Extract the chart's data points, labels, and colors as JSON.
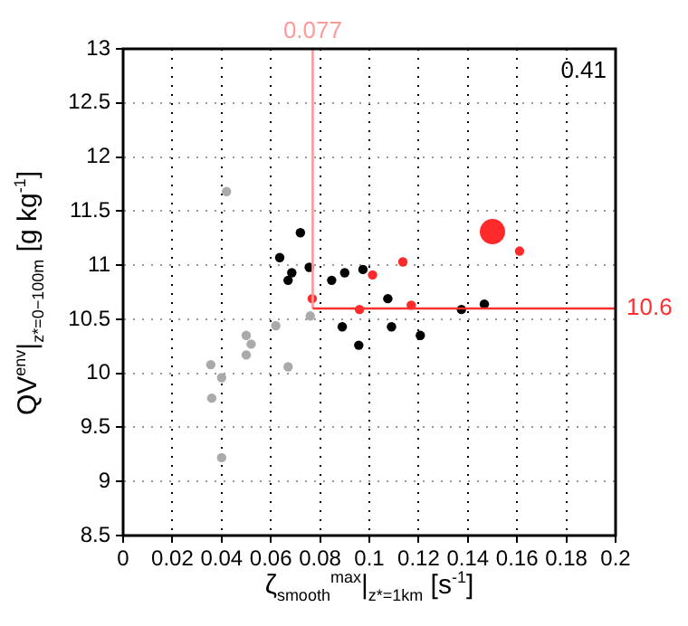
{
  "chart_data": {
    "type": "scatter",
    "xlabel": "ζ$_{smooth}$$^{max}$|$_{z*=1km}$  [s$^{-1}$]",
    "ylabel": "QV$^{env}$|$_{z*=0−100m}$  [g  kg$^{-1}$]",
    "annotations": [
      "0.41"
    ],
    "series": [
      {
        "color": "#aaaaaa",
        "x": [
          0.042,
          0.0356,
          0.036,
          0.04,
          0.04,
          0.05,
          0.052,
          0.05,
          0.062,
          0.067,
          0.076
        ],
        "values": [
          11.68,
          10.08,
          9.77,
          9.96,
          9.22,
          10.35,
          10.27,
          10.17,
          10.44,
          10.06,
          10.53
        ]
      },
      {
        "color": "#000000",
        "x": [
          0.0636,
          0.072,
          0.067,
          0.0685,
          0.0756,
          0.0847,
          0.09,
          0.0974,
          0.089,
          0.0957,
          0.1075,
          0.109,
          0.1207,
          0.1374,
          0.1467
        ],
        "values": [
          11.07,
          11.3,
          10.86,
          10.93,
          10.98,
          10.86,
          10.93,
          10.96,
          10.43,
          10.26,
          10.69,
          10.43,
          10.35,
          10.59,
          10.64
        ]
      },
      {
        "color": "#ff2a2a",
        "x": [
          0.0768,
          0.096,
          0.1013,
          0.1136,
          0.117,
          0.161
        ],
        "values": [
          10.69,
          10.59,
          10.91,
          11.03,
          10.63,
          11.13
        ]
      },
      {
        "type": "bubble",
        "color": "#ff2a2a",
        "x": [
          0.15
        ],
        "values": [
          11.31
        ],
        "sizes": [
          1
        ]
      }
    ],
    "xlim": [
      0,
      0.2
    ],
    "xticks": [
      0,
      0.02,
      0.04,
      0.06,
      0.08,
      0.1,
      0.12,
      0.14,
      0.16,
      0.18,
      0.2
    ],
    "ylim": [
      8.5,
      13
    ],
    "yticks": [
      8.5,
      9,
      9.5,
      10,
      10.5,
      11,
      11.5,
      12,
      12.5,
      13
    ],
    "ref_lines": [
      {
        "axis": "x",
        "value": 0.077,
        "label": "0.077",
        "color": "#ff9a9a"
      },
      {
        "axis": "y",
        "value": 10.6,
        "label": "10.6",
        "color": "#ff3030"
      }
    ],
    "grid": true,
    "legend": false,
    "marker": "circle"
  }
}
